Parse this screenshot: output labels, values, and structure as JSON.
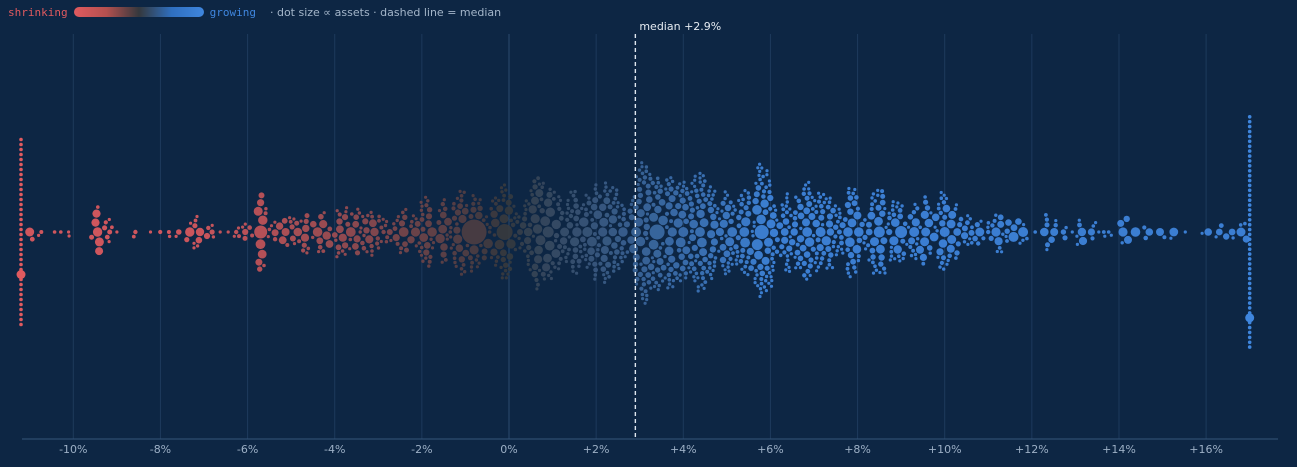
{
  "legend": {
    "shrinking_label": "shrinking",
    "growing_label": "growing",
    "note": "· dot size ∝ assets · dashed line = median"
  },
  "colors": {
    "background": "#0d2644",
    "shrinking": "#e05a5f",
    "neutral": "#34383d",
    "growing": "#3f86de",
    "gridline": "#1d3a5c",
    "median_line": "#dfe7f0",
    "axis_text": "#9db0c6"
  },
  "chart_data": {
    "type": "scatter",
    "subtype": "beeswarm",
    "title": "",
    "xlabel": "",
    "ylabel": "",
    "x_unit": "%",
    "xlim": [
      -11.2,
      17.0
    ],
    "x_ticks": [
      -10,
      -8,
      -6,
      -4,
      -2,
      0,
      2,
      4,
      6,
      8,
      10,
      12,
      14,
      16
    ],
    "x_tick_labels": [
      "-10%",
      "-8%",
      "-6%",
      "-4%",
      "-2%",
      "0%",
      "+2%",
      "+4%",
      "+6%",
      "+8%",
      "+10%",
      "+12%",
      "+14%",
      "+16%"
    ],
    "grid": "vertical",
    "median": 2.9,
    "median_label": "median +2.9%",
    "clipped_low": -11.2,
    "clipped_high": 17.0,
    "density_segments": [
      {
        "x_from": -11.2,
        "x_to": -8.0,
        "count": 25
      },
      {
        "x_from": -8.0,
        "x_to": -6.0,
        "count": 30
      },
      {
        "x_from": -6.0,
        "x_to": -4.0,
        "count": 55
      },
      {
        "x_from": -4.0,
        "x_to": -2.0,
        "count": 90
      },
      {
        "x_from": -2.0,
        "x_to": 0.0,
        "count": 130
      },
      {
        "x_from": 0.0,
        "x_to": 2.0,
        "count": 160
      },
      {
        "x_from": 2.0,
        "x_to": 4.0,
        "count": 200
      },
      {
        "x_from": 4.0,
        "x_to": 6.0,
        "count": 210
      },
      {
        "x_from": 6.0,
        "x_to": 8.0,
        "count": 170
      },
      {
        "x_from": 8.0,
        "x_to": 10.0,
        "count": 120
      },
      {
        "x_from": 10.0,
        "x_to": 12.0,
        "count": 60
      },
      {
        "x_from": 12.0,
        "x_to": 14.0,
        "count": 30
      },
      {
        "x_from": 14.0,
        "x_to": 17.0,
        "count": 25
      }
    ],
    "clipped_low_count": 38,
    "clipped_high_count": 48,
    "notable_points": [
      {
        "x": -0.8,
        "size": 5.0
      },
      {
        "x": -0.1,
        "size": 3.2
      },
      {
        "x": 3.4,
        "size": 3.0
      },
      {
        "x": 5.8,
        "size": 2.8
      },
      {
        "x": -5.7,
        "size": 2.6
      },
      {
        "x": 5.7,
        "size": 2.2
      },
      {
        "x": 8.5,
        "size": 2.2
      },
      {
        "x": 9.0,
        "size": 2.4
      },
      {
        "x": 9.3,
        "size": 2.0
      },
      {
        "x": 1.8,
        "size": 2.0
      },
      {
        "x": -11.0,
        "size": 1.8
      },
      {
        "x": 16.8,
        "size": 1.8
      },
      {
        "x": -9.4,
        "size": 1.8
      },
      {
        "x": 10.0,
        "size": 2.0
      },
      {
        "x": 11.8,
        "size": 2.0
      },
      {
        "x": 0.9,
        "size": 2.2
      },
      {
        "x": 4.0,
        "size": 2.0
      }
    ]
  }
}
